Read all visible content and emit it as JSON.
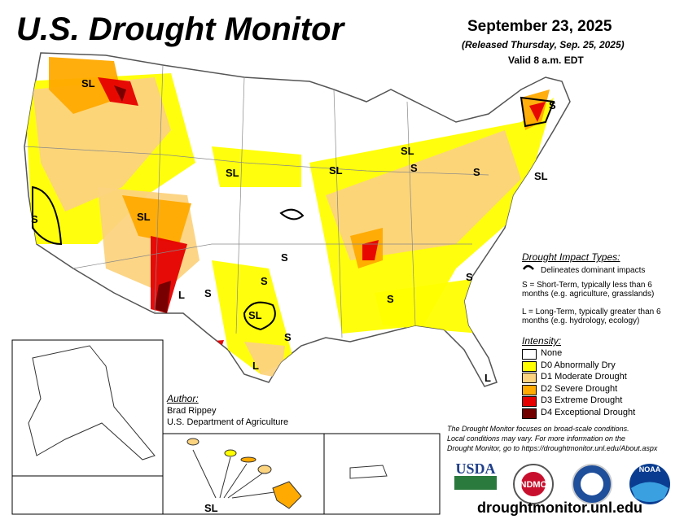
{
  "header": {
    "title": "U.S. Drought Monitor",
    "date": "September 23, 2025",
    "released": "(Released Thursday, Sep. 25, 2025)",
    "valid": "Valid 8 a.m. EDT"
  },
  "impact_types": {
    "title": "Drought Impact Types:",
    "line_desc": "Delineates dominant impacts",
    "short_term": "S = Short-Term, typically less than 6 months (e.g. agriculture, grasslands)",
    "long_term": "L = Long-Term, typically greater than 6 months (e.g. hydrology, ecology)"
  },
  "intensity": {
    "title": "Intensity:",
    "items": [
      {
        "label": "None",
        "color": "#ffffff"
      },
      {
        "label": "D0 Abnormally Dry",
        "color": "#ffff00"
      },
      {
        "label": "D1 Moderate Drought",
        "color": "#fcd37f"
      },
      {
        "label": "D2 Severe Drought",
        "color": "#ffaa00"
      },
      {
        "label": "D3 Extreme Drought",
        "color": "#e60000"
      },
      {
        "label": "D4 Exceptional Drought",
        "color": "#730000"
      }
    ]
  },
  "author": {
    "label": "Author:",
    "name": "Brad Rippey",
    "org": "U.S. Department of Agriculture"
  },
  "note": [
    "The Drought Monitor focuses on broad-scale conditions.",
    "Local conditions may vary. For more information on the",
    "Drought Monitor, go to https://droughtmonitor.unl.edu/About.aspx"
  ],
  "logos": [
    "USDA",
    "NDMC",
    "NOAA"
  ],
  "url": "droughtmonitor.unl.edu",
  "map_labels": [
    "SL",
    "SL",
    "S",
    "SL",
    "SL",
    "S",
    "SL",
    "S",
    "S",
    "SL",
    "S",
    "S",
    "S",
    "S",
    "L",
    "S",
    "SL",
    "S",
    "L",
    "L",
    "SL"
  ]
}
